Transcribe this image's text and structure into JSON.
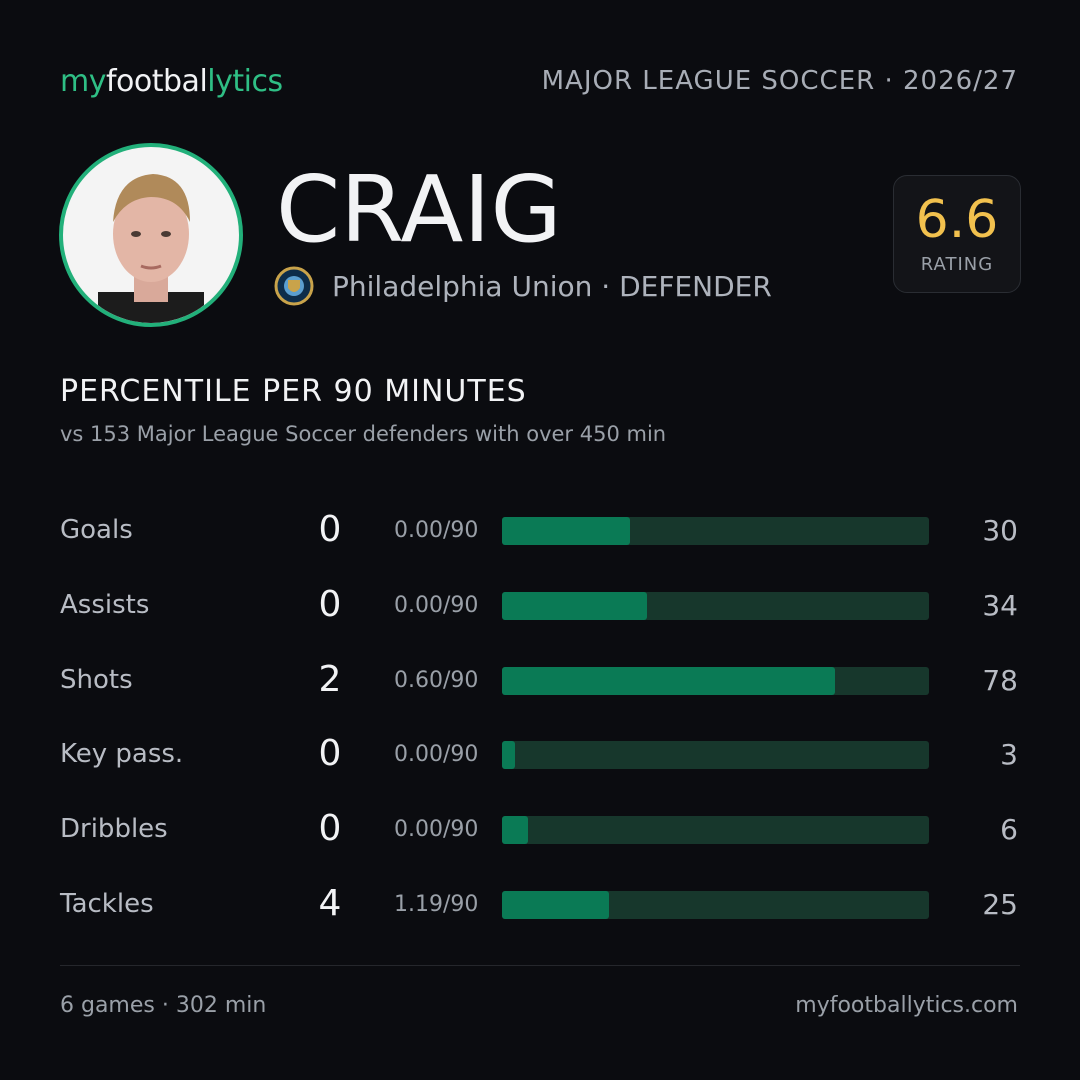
{
  "header": {
    "logo": [
      "my",
      "footbal",
      "lytics"
    ],
    "league": "MAJOR LEAGUE SOCCER · 2026/27"
  },
  "player": {
    "name": "CRAIG",
    "team": "Philadelphia Union · DEFENDER",
    "rating": "6.6",
    "rating_label": "RATING"
  },
  "stats": {
    "title": "PERCENTILE  PER 90 MINUTES",
    "subtitle": "vs 153 Major League Soccer defenders with over 450 min",
    "xlim": [
      0,
      100
    ],
    "rows": [
      {
        "label": "Goals",
        "count": 0,
        "per90": "0.00/90",
        "percentile": 30
      },
      {
        "label": "Assists",
        "count": 0,
        "per90": "0.00/90",
        "percentile": 34
      },
      {
        "label": "Shots",
        "count": 2,
        "per90": "0.60/90",
        "percentile": 78
      },
      {
        "label": "Key pass.",
        "count": 0,
        "per90": "0.00/90",
        "percentile": 3
      },
      {
        "label": "Dribbles",
        "count": 0,
        "per90": "0.00/90",
        "percentile": 6
      },
      {
        "label": "Tackles",
        "count": 4,
        "per90": "1.19/90",
        "percentile": 25
      }
    ]
  },
  "footer": {
    "games": "6 games · 302 min",
    "website": "myfootballytics.com"
  }
}
